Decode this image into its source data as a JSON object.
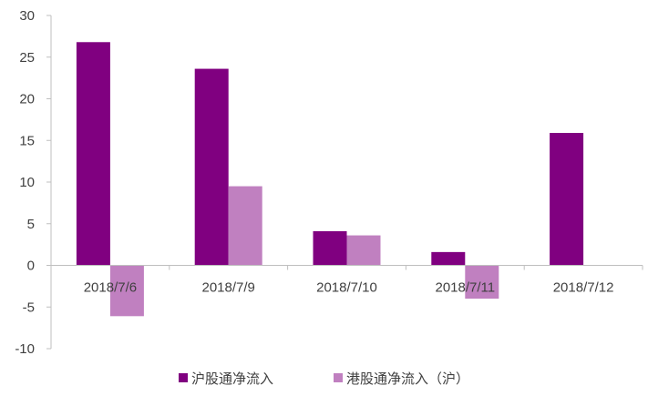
{
  "chart_data": {
    "type": "bar",
    "categories": [
      "2018/7/6",
      "2018/7/9",
      "2018/7/10",
      "2018/7/11",
      "2018/7/12"
    ],
    "series": [
      {
        "name": "沪股通净流入",
        "values": [
          26.8,
          23.6,
          4.1,
          1.6,
          15.9
        ],
        "color": "#800080"
      },
      {
        "name": "港股通净流入（沪）",
        "values": [
          -6.1,
          9.5,
          3.6,
          -4.0,
          0
        ],
        "color": "#C080C0"
      }
    ],
    "title": "",
    "xlabel": "",
    "ylabel": "",
    "ylim": [
      -10,
      30
    ],
    "yticks": [
      -10,
      -5,
      0,
      5,
      10,
      15,
      20,
      25,
      30
    ],
    "grid": false,
    "legend": "bottom"
  }
}
